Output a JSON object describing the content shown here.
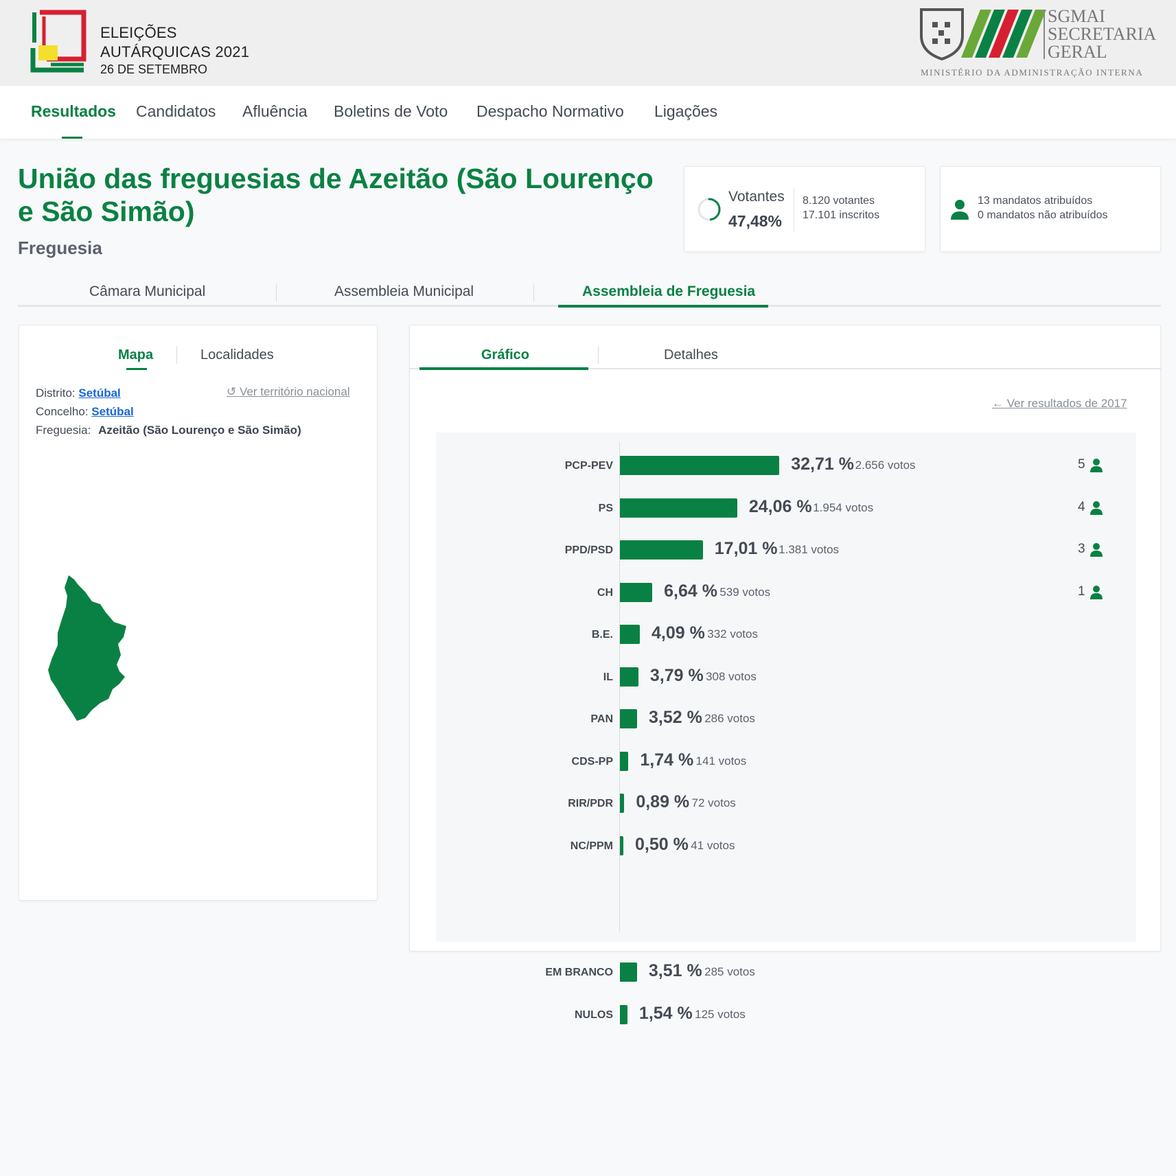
{
  "header": {
    "logo_line1": "ELEIÇÕES",
    "logo_line2": "AUTÁRQUICAS 2021",
    "logo_line3": "26 DE SETEMBRO",
    "sgmai_line1": "SGMAI",
    "sgmai_line2": "SECRETARIA",
    "sgmai_line3": "GERAL",
    "ministerio": "MINISTÉRIO DA ADMINISTRAÇÃO INTERNA"
  },
  "nav": {
    "items": [
      "Resultados",
      "Candidatos",
      "Afluência",
      "Boletins de Voto",
      "Despacho Normativo",
      "Ligações"
    ],
    "active": "Resultados"
  },
  "page": {
    "title": "União das freguesias de Azeitão (São Lourenço e São Simão)",
    "subtitle": "Freguesia"
  },
  "votantes": {
    "label": "Votantes",
    "percent": "47,48%",
    "percent_value": 47.48,
    "votantes_text": "8.120 votantes",
    "inscritos_text": "17.101 inscritos"
  },
  "mandatos": {
    "atribuidos_text": "13 mandatos atribuídos",
    "nao_atribuidos_text": "0 mandatos não atribuídos"
  },
  "tabs": {
    "items": [
      "Câmara Municipal",
      "Assembleia Municipal",
      "Assembleia de Freguesia"
    ],
    "active": "Assembleia de Freguesia"
  },
  "left_panel": {
    "tabs": [
      "Mapa",
      "Localidades"
    ],
    "active": "Mapa",
    "distrito_label": "Distrito:",
    "distrito_value": "Setúbal",
    "concelho_label": "Concelho:",
    "concelho_value": "Setúbal",
    "freguesia_label": "Freguesia:",
    "freguesia_value": "Azeitão (São Lourenço e São Simão)",
    "ver_territorio": "Ver território nacional"
  },
  "right_panel": {
    "tabs": [
      "Gráfico",
      "Detalhes"
    ],
    "active": "Gráfico",
    "ver_2017": "Ver resultados de 2017"
  },
  "colors": {
    "brand_green": "#0a8144",
    "link_blue": "#1a66d8"
  },
  "chart_data": {
    "type": "bar",
    "orientation": "horizontal",
    "categories": [
      "PCP-PEV",
      "PS",
      "PPD/PSD",
      "CH",
      "B.E.",
      "IL",
      "PAN",
      "CDS-PP",
      "RIR/PDR",
      "NC/PPM",
      "EM BRANCO",
      "NULOS"
    ],
    "values": [
      32.71,
      24.06,
      17.01,
      6.64,
      4.09,
      3.79,
      3.52,
      1.74,
      0.89,
      0.5,
      3.51,
      1.54
    ],
    "labels": [
      "32,71 %",
      "24,06 %",
      "17,01 %",
      "6,64 %",
      "4,09 %",
      "3,79 %",
      "3,52 %",
      "1,74 %",
      "0,89 %",
      "0,50 %",
      "3,51 %",
      "1,54 %"
    ],
    "votes": [
      "2.656 votos",
      "1.954 votos",
      "1.381 votos",
      "539 votos",
      "332 votos",
      "308 votos",
      "286 votos",
      "141 votos",
      "72 votos",
      "41 votos",
      "285 votos",
      "125 votos"
    ],
    "seats": [
      "5",
      "4",
      "3",
      "1",
      "",
      "",
      "",
      "",
      "",
      "",
      "",
      ""
    ],
    "xlim": [
      0,
      100
    ]
  }
}
